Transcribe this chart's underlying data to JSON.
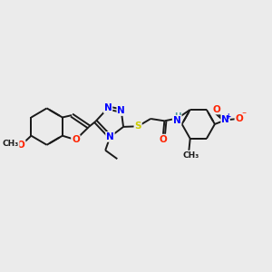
{
  "background_color": "#ebebeb",
  "figsize": [
    3.0,
    3.0
  ],
  "dpi": 100,
  "colors": {
    "C": "#1a1a1a",
    "N": "#0000ff",
    "O": "#ff2200",
    "S": "#cccc00",
    "H": "#4a9a9a",
    "bond": "#1a1a1a"
  },
  "lw": 1.4,
  "fs": 7.5,
  "fss": 6.5
}
